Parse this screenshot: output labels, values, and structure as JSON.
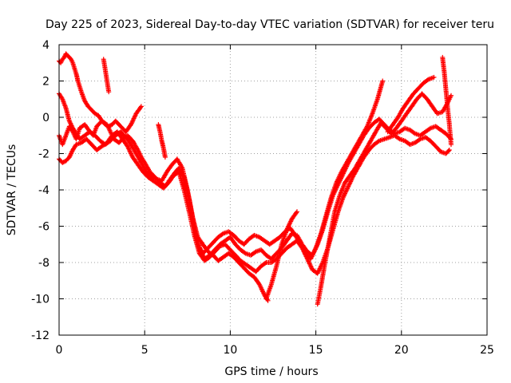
{
  "chart_data": {
    "type": "scatter",
    "title": "Day 225 of 2023, Sidereal Day-to-day VTEC variation (SDTVAR) for receiver teru",
    "xlabel": "GPS time / hours",
    "ylabel": "SDTVAR / TECUs",
    "xlim": [
      0,
      25
    ],
    "ylim": [
      -12,
      4
    ],
    "x_ticks": [
      0,
      5,
      10,
      15,
      20,
      25
    ],
    "y_ticks": [
      -12,
      -10,
      -8,
      -6,
      -4,
      -2,
      0,
      2,
      4
    ],
    "grid": true,
    "marker": "plus",
    "color": "#ff0000",
    "series": [
      {
        "x": [
          0.0,
          0.2,
          0.4,
          0.6,
          0.8,
          1.0,
          1.2,
          1.5,
          1.8,
          2.0,
          2.2,
          2.5,
          2.8,
          3.0,
          3.2,
          3.5,
          3.8,
          4.0,
          4.3,
          4.6,
          4.8,
          5.0,
          5.3,
          5.6,
          5.9,
          6.2,
          6.5,
          6.8,
          7.0,
          7.3,
          7.6,
          7.9,
          8.2,
          8.5,
          8.8,
          9.1,
          9.4,
          9.7,
          10.0,
          10.3,
          10.6,
          10.9,
          11.2,
          11.5,
          11.8,
          12.1,
          12.4,
          12.7,
          13.0,
          13.3,
          13.6,
          13.9,
          14.2,
          14.5,
          14.8,
          15.1,
          15.4,
          15.7,
          16.0,
          16.3,
          16.6,
          16.9,
          17.2,
          17.5,
          17.8,
          18.1,
          18.4,
          18.7,
          19.0,
          19.3,
          19.6,
          19.9,
          20.2,
          20.5,
          20.8,
          21.1,
          21.4,
          21.7,
          22.0,
          22.3,
          22.6,
          22.9
        ],
        "y": [
          -1.0,
          -1.5,
          -1.0,
          -0.5,
          -0.8,
          -1.2,
          -0.6,
          -0.4,
          -0.8,
          -1.0,
          -0.5,
          -0.2,
          -0.4,
          -0.8,
          -1.2,
          -1.4,
          -1.1,
          -1.0,
          -1.3,
          -1.8,
          -2.2,
          -2.5,
          -3.0,
          -3.3,
          -3.6,
          -3.8,
          -3.4,
          -3.0,
          -2.8,
          -3.3,
          -4.5,
          -6.0,
          -7.2,
          -7.8,
          -7.6,
          -7.3,
          -7.0,
          -6.8,
          -6.6,
          -7.0,
          -7.3,
          -7.5,
          -7.6,
          -7.4,
          -7.3,
          -7.6,
          -7.8,
          -7.5,
          -7.2,
          -6.8,
          -6.4,
          -6.5,
          -7.0,
          -7.4,
          -7.6,
          -7.0,
          -6.2,
          -5.2,
          -4.3,
          -3.7,
          -3.1,
          -2.5,
          -2.0,
          -1.5,
          -1.0,
          -0.6,
          -0.3,
          -0.1,
          -0.4,
          -0.7,
          -0.9,
          -0.8,
          -0.6,
          -0.7,
          -0.9,
          -1.0,
          -0.8,
          -0.6,
          -0.5,
          -0.7,
          -0.9,
          -1.2
        ]
      },
      {
        "x": [
          0.0,
          0.2,
          0.4,
          0.6,
          0.8,
          1.0,
          1.3,
          1.6,
          1.9,
          2.2,
          2.5,
          2.8,
          3.1,
          3.4,
          3.7,
          4.0,
          4.3,
          4.6,
          4.9,
          5.2,
          5.5,
          5.8,
          6.1,
          6.4,
          6.7,
          7.0,
          7.3,
          7.6,
          7.9,
          8.2,
          8.5,
          8.8,
          9.1,
          9.4,
          9.7,
          10.0,
          10.3,
          10.6,
          10.9,
          11.2,
          11.5,
          11.8,
          12.1,
          12.4,
          12.7,
          13.0,
          13.3,
          13.6,
          13.9,
          14.2,
          14.5,
          14.8,
          15.1,
          15.4,
          15.7,
          16.0,
          16.3,
          16.6,
          16.9,
          17.2,
          17.5,
          17.8,
          18.1,
          18.4,
          18.7,
          19.0,
          19.3,
          19.6,
          19.9,
          20.2,
          20.5,
          20.8,
          21.1,
          21.4,
          21.7,
          22.0,
          22.3,
          22.6,
          22.8
        ],
        "y": [
          -2.3,
          -2.5,
          -2.4,
          -2.2,
          -1.8,
          -1.5,
          -1.4,
          -1.2,
          -1.5,
          -1.8,
          -1.6,
          -1.4,
          -1.0,
          -0.8,
          -1.2,
          -1.6,
          -2.2,
          -2.6,
          -3.0,
          -3.3,
          -3.5,
          -3.7,
          -3.9,
          -3.6,
          -3.2,
          -3.0,
          -4.0,
          -5.2,
          -6.5,
          -7.5,
          -7.9,
          -7.7,
          -7.4,
          -7.1,
          -7.0,
          -7.3,
          -7.6,
          -7.9,
          -8.1,
          -8.3,
          -8.5,
          -8.2,
          -8.0,
          -8.0,
          -7.8,
          -7.5,
          -7.2,
          -7.0,
          -6.8,
          -7.2,
          -7.8,
          -8.4,
          -8.6,
          -8.0,
          -7.2,
          -6.2,
          -5.2,
          -4.4,
          -3.8,
          -3.2,
          -2.7,
          -2.2,
          -1.8,
          -1.5,
          -1.3,
          -1.2,
          -1.1,
          -1.0,
          -1.2,
          -1.3,
          -1.5,
          -1.4,
          -1.2,
          -1.1,
          -1.3,
          -1.6,
          -1.9,
          -2.0,
          -1.8
        ]
      },
      {
        "x": [
          0.0,
          0.2,
          0.4,
          0.6,
          0.8,
          1.0,
          1.2,
          1.5,
          1.8,
          2.1,
          2.4,
          2.7,
          3.0,
          3.3,
          3.6,
          3.9,
          4.2,
          4.5,
          4.8,
          5.1,
          5.4,
          5.7,
          6.0,
          6.3,
          6.6,
          6.9,
          7.2,
          7.5,
          7.8,
          8.1,
          8.4,
          8.7,
          9.0,
          9.3,
          9.6,
          9.9,
          10.2,
          10.5,
          10.8,
          11.1,
          11.4,
          11.7,
          12.0,
          12.2
        ],
        "y": [
          1.3,
          1.0,
          0.5,
          -0.2,
          -0.6,
          -0.9,
          -1.2,
          -1.0,
          -0.8,
          -1.0,
          -1.3,
          -1.5,
          -1.3,
          -1.0,
          -0.8,
          -1.1,
          -1.5,
          -2.0,
          -2.5,
          -3.0,
          -3.3,
          -3.4,
          -3.5,
          -3.0,
          -2.6,
          -2.3,
          -2.8,
          -4.0,
          -5.5,
          -6.6,
          -7.0,
          -7.4,
          -7.6,
          -7.9,
          -7.7,
          -7.5,
          -7.7,
          -8.0,
          -8.3,
          -8.6,
          -8.8,
          -9.2,
          -9.8,
          -10.1
        ]
      },
      {
        "x": [
          0.0,
          0.1,
          0.2,
          0.3,
          0.4,
          0.5,
          0.6,
          0.7,
          0.8,
          0.9,
          1.0,
          1.1,
          1.3,
          1.5,
          1.7,
          1.9,
          2.1,
          2.3,
          2.5,
          2.7,
          2.9,
          3.1,
          3.3,
          3.6,
          3.9,
          4.2,
          4.5,
          4.8
        ],
        "y": [
          3.1,
          3.0,
          3.2,
          3.3,
          3.5,
          3.4,
          3.3,
          3.2,
          3.0,
          2.7,
          2.4,
          2.0,
          1.4,
          0.9,
          0.6,
          0.4,
          0.2,
          0.1,
          -0.2,
          -0.4,
          -0.5,
          -0.4,
          -0.2,
          -0.5,
          -0.8,
          -0.4,
          0.2,
          0.6
        ]
      },
      {
        "x": [
          8.1,
          8.4,
          8.7,
          9.0,
          9.3,
          9.6,
          9.9,
          10.2,
          10.5,
          10.8,
          11.1,
          11.4,
          11.7,
          12.0,
          12.3,
          12.6,
          12.9,
          13.2,
          13.5,
          13.8,
          14.1,
          14.4,
          14.7,
          15.0,
          15.3,
          15.6,
          15.9,
          16.2,
          16.5,
          16.8,
          17.1,
          17.4,
          17.7,
          18.0,
          18.3,
          18.6,
          18.9
        ],
        "y": [
          -7.0,
          -7.5,
          -7.2,
          -6.9,
          -6.6,
          -6.4,
          -6.3,
          -6.5,
          -6.8,
          -7.0,
          -6.7,
          -6.5,
          -6.6,
          -6.8,
          -7.0,
          -6.8,
          -6.6,
          -6.3,
          -6.1,
          -6.5,
          -7.0,
          -7.5,
          -7.8,
          -7.2,
          -6.4,
          -5.4,
          -4.4,
          -3.6,
          -3.0,
          -2.5,
          -2.0,
          -1.5,
          -1.0,
          -0.5,
          0.2,
          1.0,
          2.0
        ]
      },
      {
        "x": [
          12.1,
          12.4,
          12.7,
          13.0,
          13.3,
          13.6,
          13.9
        ],
        "y": [
          -10.0,
          -9.2,
          -8.2,
          -7.0,
          -6.2,
          -5.6,
          -5.2
        ]
      },
      {
        "x": [
          15.1,
          15.3,
          15.5,
          15.7,
          15.9,
          16.1,
          16.4,
          16.7,
          17.0,
          17.3,
          17.6,
          17.9,
          18.2,
          18.5,
          18.8,
          19.1,
          19.4,
          19.7,
          20.0,
          20.3,
          20.6,
          20.9,
          21.2,
          21.5,
          21.8,
          22.1,
          22.4,
          22.7,
          22.9
        ],
        "y": [
          -10.3,
          -9.3,
          -8.2,
          -7.2,
          -6.2,
          -5.2,
          -4.3,
          -3.6,
          -3.2,
          -2.8,
          -2.3,
          -1.8,
          -1.3,
          -0.8,
          -0.3,
          -0.6,
          -0.9,
          -0.6,
          -0.2,
          0.2,
          0.6,
          1.0,
          1.3,
          1.0,
          0.6,
          0.2,
          0.3,
          0.8,
          1.2
        ]
      },
      {
        "x": [
          19.2,
          19.5,
          19.8,
          20.1,
          20.4,
          20.7,
          21.0,
          21.3,
          21.6,
          21.9
        ],
        "y": [
          -0.8,
          -0.4,
          0.0,
          0.5,
          0.9,
          1.3,
          1.6,
          1.9,
          2.1,
          2.2
        ]
      },
      {
        "x": [
          22.4,
          22.5,
          22.6,
          22.7,
          22.8,
          22.9
        ],
        "y": [
          3.3,
          2.5,
          1.5,
          0.5,
          -0.4,
          -1.5
        ]
      },
      {
        "x": [
          2.6,
          2.7,
          2.8,
          2.9
        ],
        "y": [
          3.2,
          2.6,
          2.0,
          1.4
        ]
      },
      {
        "x": [
          5.8,
          5.9,
          6.0,
          6.1,
          6.2
        ],
        "y": [
          -0.4,
          -0.8,
          -1.3,
          -1.7,
          -2.2
        ]
      }
    ]
  }
}
